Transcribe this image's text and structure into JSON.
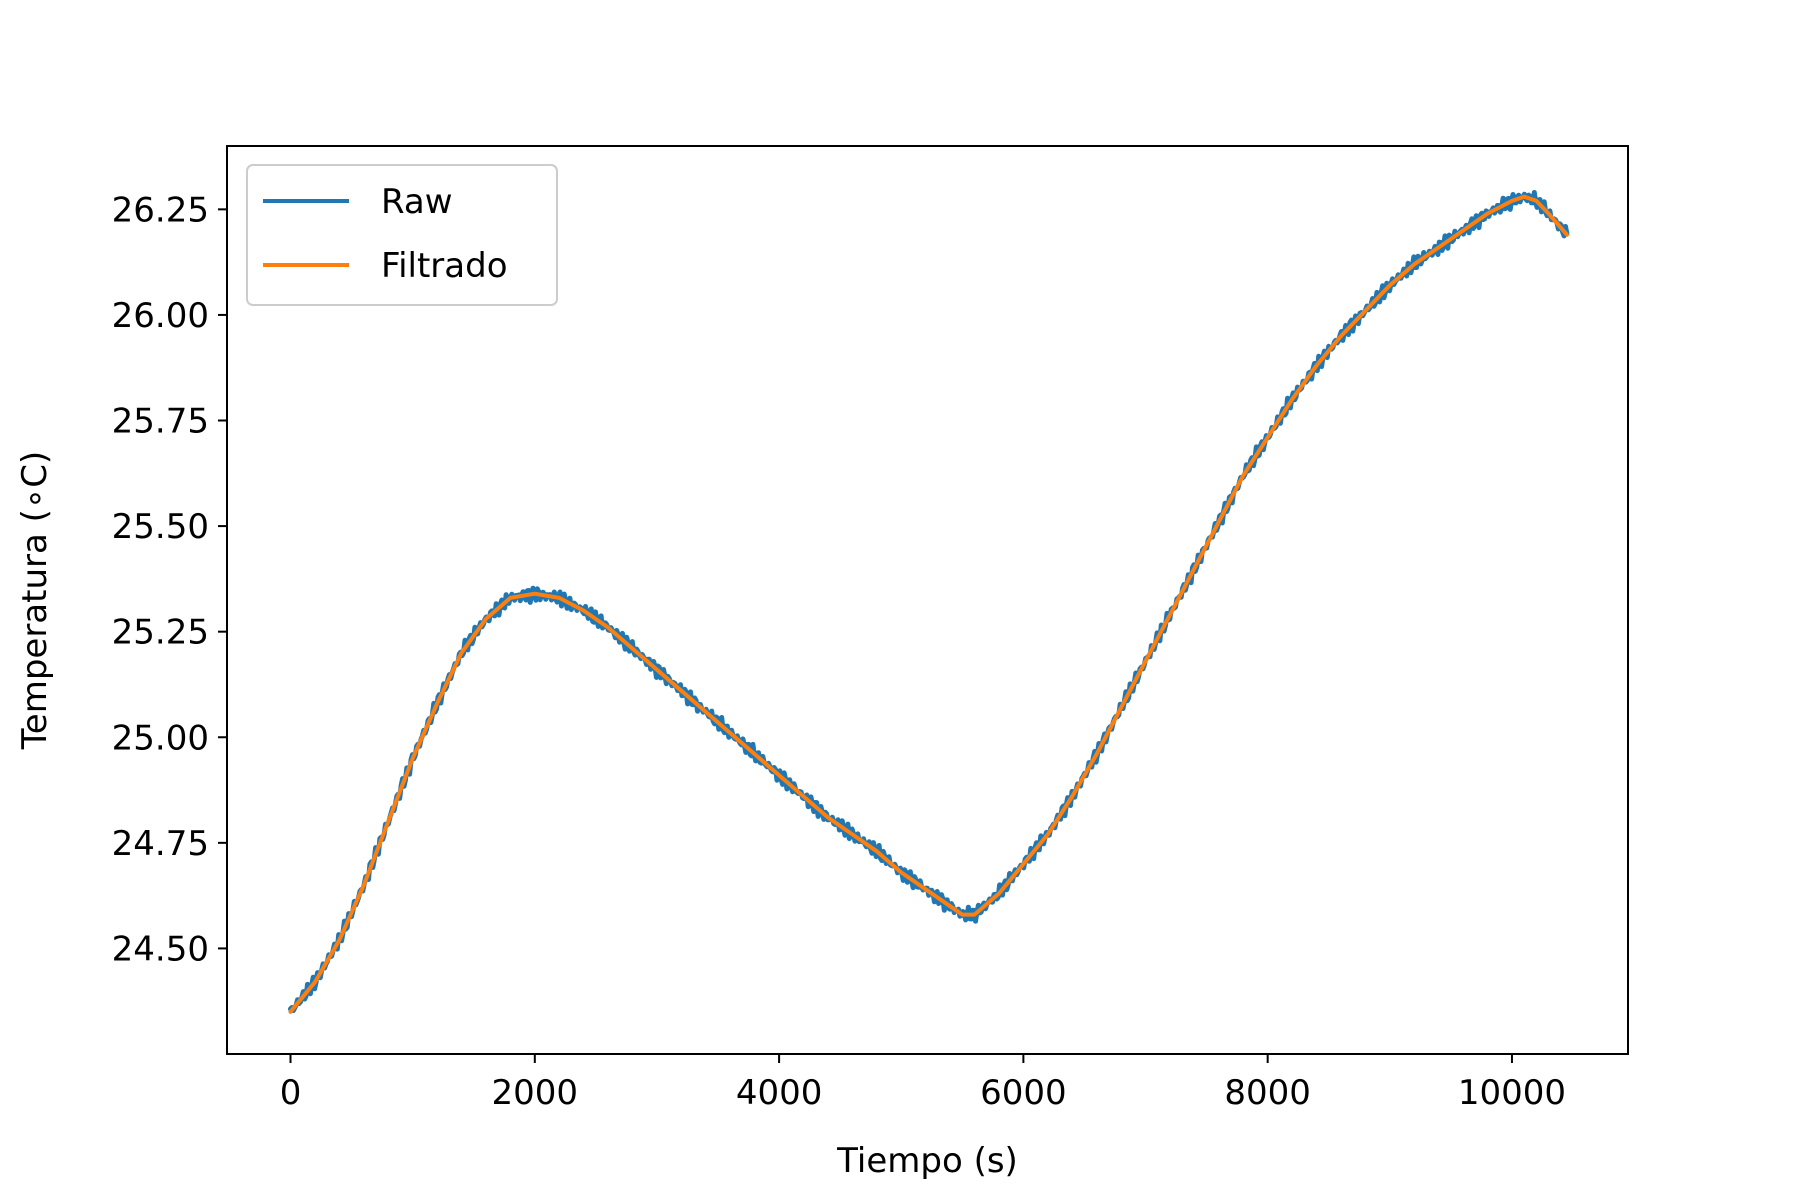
{
  "chart_data": {
    "type": "line",
    "title": "",
    "xlabel": "Tiempo (s)",
    "ylabel": "Temperatura (∘C)",
    "xlim": [
      -520,
      10950
    ],
    "ylim": [
      24.25,
      26.4
    ],
    "xticks": [
      0,
      2000,
      4000,
      6000,
      8000,
      10000
    ],
    "xtick_labels": [
      "0",
      "2000",
      "4000",
      "6000",
      "8000",
      "10000"
    ],
    "yticks": [
      24.5,
      24.75,
      25.0,
      25.25,
      25.5,
      25.75,
      26.0,
      26.25
    ],
    "ytick_labels": [
      "24.50",
      "24.75",
      "25.00",
      "25.25",
      "25.50",
      "25.75",
      "26.00",
      "26.25"
    ],
    "grid": false,
    "legend_position": "top-left",
    "series": [
      {
        "name": "Raw",
        "color": "#1f77b4",
        "noise_amplitude": 0.02,
        "x": [
          0,
          200,
          400,
          600,
          800,
          1000,
          1200,
          1400,
          1600,
          1800,
          2000,
          2200,
          2400,
          2600,
          2800,
          3000,
          3200,
          3400,
          3600,
          3800,
          4000,
          4200,
          4400,
          4600,
          4800,
          5000,
          5200,
          5400,
          5500,
          5600,
          5800,
          6000,
          6200,
          6400,
          6600,
          6800,
          7000,
          7200,
          7400,
          7600,
          7800,
          8000,
          8200,
          8400,
          8600,
          8800,
          9000,
          9200,
          9400,
          9600,
          9800,
          10000,
          10100,
          10200,
          10300,
          10450
        ],
        "y": [
          24.35,
          24.42,
          24.52,
          24.65,
          24.8,
          24.95,
          25.08,
          25.2,
          25.28,
          25.33,
          25.34,
          25.33,
          25.3,
          25.26,
          25.21,
          25.16,
          25.11,
          25.06,
          25.01,
          24.96,
          24.91,
          24.86,
          24.81,
          24.77,
          24.73,
          24.68,
          24.64,
          24.6,
          24.58,
          24.58,
          24.63,
          24.7,
          24.77,
          24.86,
          24.96,
          25.07,
          25.18,
          25.29,
          25.4,
          25.51,
          25.62,
          25.71,
          25.8,
          25.88,
          25.95,
          26.01,
          26.07,
          26.12,
          26.16,
          26.2,
          26.24,
          26.27,
          26.28,
          26.27,
          26.24,
          26.19
        ]
      },
      {
        "name": "Filtrado",
        "color": "#ff7f0e",
        "x": [
          0,
          200,
          400,
          600,
          800,
          1000,
          1200,
          1400,
          1600,
          1800,
          2000,
          2200,
          2400,
          2600,
          2800,
          3000,
          3200,
          3400,
          3600,
          3800,
          4000,
          4200,
          4400,
          4600,
          4800,
          5000,
          5200,
          5400,
          5500,
          5600,
          5800,
          6000,
          6200,
          6400,
          6600,
          6800,
          7000,
          7200,
          7400,
          7600,
          7800,
          8000,
          8200,
          8400,
          8600,
          8800,
          9000,
          9200,
          9400,
          9600,
          9800,
          10000,
          10100,
          10200,
          10300,
          10450
        ],
        "y": [
          24.35,
          24.42,
          24.52,
          24.65,
          24.8,
          24.95,
          25.08,
          25.2,
          25.28,
          25.33,
          25.34,
          25.33,
          25.3,
          25.26,
          25.21,
          25.16,
          25.11,
          25.06,
          25.01,
          24.96,
          24.91,
          24.86,
          24.81,
          24.77,
          24.73,
          24.68,
          24.64,
          24.6,
          24.58,
          24.58,
          24.63,
          24.7,
          24.77,
          24.86,
          24.96,
          25.07,
          25.18,
          25.29,
          25.4,
          25.51,
          25.62,
          25.71,
          25.8,
          25.88,
          25.95,
          26.01,
          26.07,
          26.12,
          26.16,
          26.2,
          26.24,
          26.27,
          26.28,
          26.27,
          26.24,
          26.19
        ]
      }
    ]
  }
}
